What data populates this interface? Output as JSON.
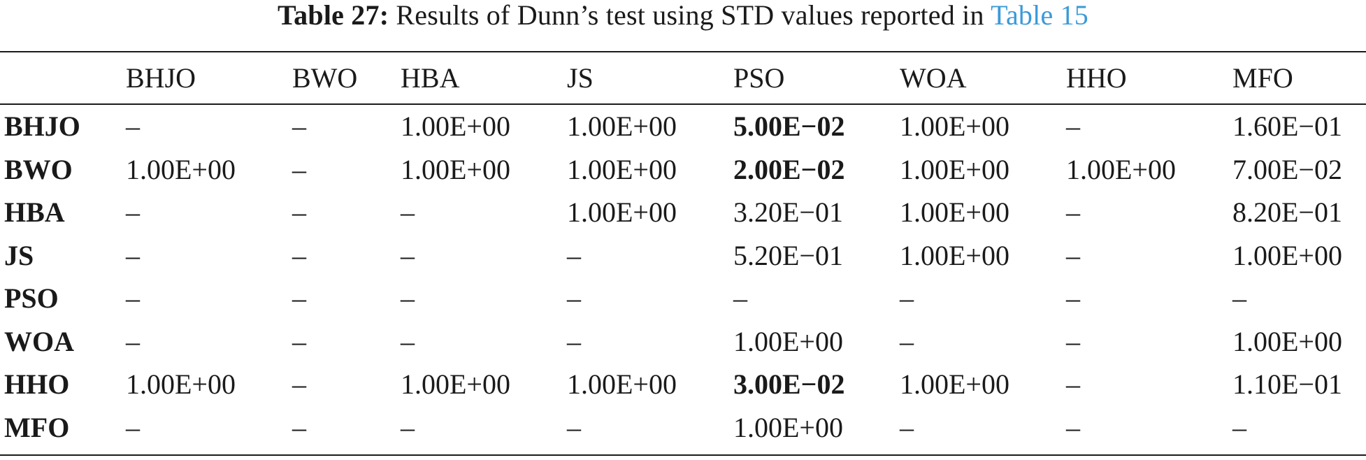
{
  "caption": {
    "label": "Table 27:",
    "text": " Results of Dunn’s test using STD values reported in ",
    "link": "Table 15"
  },
  "table": {
    "columns": [
      "",
      "BHJO",
      "BWO",
      "HBA",
      "JS",
      "PSO",
      "WOA",
      "HHO",
      "MFO"
    ],
    "rows": [
      {
        "name": "BHJO",
        "cells": [
          "–",
          "–",
          "1.00E+00",
          "1.00E+00",
          "5.00E−02",
          "1.00E+00",
          "–",
          "1.60E−01"
        ],
        "bold": [
          4
        ]
      },
      {
        "name": "BWO",
        "cells": [
          "1.00E+00",
          "–",
          "1.00E+00",
          "1.00E+00",
          "2.00E−02",
          "1.00E+00",
          "1.00E+00",
          "7.00E−02"
        ],
        "bold": [
          4
        ]
      },
      {
        "name": "HBA",
        "cells": [
          "–",
          "–",
          "–",
          "1.00E+00",
          "3.20E−01",
          "1.00E+00",
          "–",
          "8.20E−01"
        ],
        "bold": []
      },
      {
        "name": "JS",
        "cells": [
          "–",
          "–",
          "–",
          "–",
          "5.20E−01",
          "1.00E+00",
          "–",
          "1.00E+00"
        ],
        "bold": []
      },
      {
        "name": "PSO",
        "cells": [
          "–",
          "–",
          "–",
          "–",
          "–",
          "–",
          "–",
          "–"
        ],
        "bold": []
      },
      {
        "name": "WOA",
        "cells": [
          "–",
          "–",
          "–",
          "–",
          "1.00E+00",
          "–",
          "–",
          "1.00E+00"
        ],
        "bold": []
      },
      {
        "name": "HHO",
        "cells": [
          "1.00E+00",
          "–",
          "1.00E+00",
          "1.00E+00",
          "3.00E−02",
          "1.00E+00",
          "–",
          "1.10E−01"
        ],
        "bold": [
          4
        ]
      },
      {
        "name": "MFO",
        "cells": [
          "–",
          "–",
          "–",
          "–",
          "1.00E+00",
          "–",
          "–",
          "–"
        ],
        "bold": []
      }
    ]
  },
  "colors": {
    "link": "#3a9ad9",
    "text": "#1a1a1a"
  }
}
